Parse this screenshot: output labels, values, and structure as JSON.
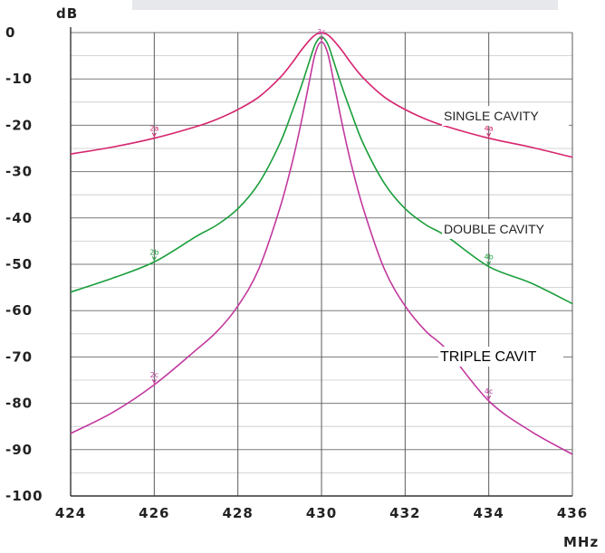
{
  "chart_data": {
    "type": "line",
    "title": "",
    "xlabel": "MHz",
    "ylabel": "dB",
    "xlim": [
      424,
      436
    ],
    "ylim": [
      -100,
      0
    ],
    "x_ticks": [
      "424",
      "426",
      "428",
      "430",
      "432",
      "434",
      "436"
    ],
    "y_ticks": [
      "0",
      "-10",
      "-20",
      "-30",
      "-40",
      "-50",
      "-60",
      "-70",
      "-80",
      "-90",
      "-100"
    ],
    "grid": true,
    "series": [
      {
        "name": "SINGLE CAVITY",
        "color": "#d6246e",
        "x": [
          424,
          425,
          426,
          427,
          427.5,
          428,
          428.5,
          429,
          429.3,
          429.5,
          429.7,
          429.85,
          430,
          430.15,
          430.3,
          430.5,
          430.7,
          431,
          431.5,
          432,
          432.5,
          433,
          434,
          435,
          436
        ],
        "y": [
          -26.2,
          -24.7,
          -22.8,
          -20.3,
          -18.7,
          -16.6,
          -13.9,
          -9.8,
          -6.5,
          -4.0,
          -1.8,
          -0.5,
          0,
          -0.5,
          -1.8,
          -4.0,
          -6.5,
          -9.8,
          -13.9,
          -16.6,
          -18.7,
          -20.3,
          -22.8,
          -24.7,
          -26.9
        ]
      },
      {
        "name": "DOUBLE CAVITY",
        "color": "#1a9e3a",
        "x": [
          424,
          425,
          426,
          427,
          427.5,
          428,
          428.5,
          429,
          429.3,
          429.5,
          429.7,
          429.85,
          430,
          430.15,
          430.3,
          430.5,
          430.7,
          431,
          431.5,
          432,
          432.5,
          433,
          434,
          435,
          436
        ],
        "y": [
          -56,
          -53,
          -49.5,
          -44,
          -41.5,
          -38,
          -32.5,
          -24,
          -17,
          -12,
          -6.5,
          -2.5,
          -1,
          -2.5,
          -6.5,
          -12,
          -17,
          -24,
          -32.5,
          -38,
          -41.5,
          -44,
          -50.5,
          -54,
          -58.5
        ]
      },
      {
        "name": "TRIPLE CAVIT",
        "color": "#c2389e",
        "x": [
          424,
          425,
          426,
          427,
          427.5,
          428,
          428.5,
          429,
          429.3,
          429.5,
          429.7,
          429.85,
          430,
          430.15,
          430.3,
          430.5,
          430.7,
          431,
          431.5,
          432,
          432.5,
          433,
          434,
          435,
          436
        ],
        "y": [
          -86.5,
          -82,
          -76,
          -68.5,
          -64.5,
          -59,
          -51,
          -38,
          -28,
          -20,
          -11,
          -4.5,
          -2,
          -4.5,
          -11,
          -20,
          -28,
          -38,
          -51,
          -59,
          -64.5,
          -68.5,
          -79.5,
          -86,
          -91
        ]
      }
    ],
    "markers": [
      {
        "label": "2a",
        "series": 0,
        "x": 426
      },
      {
        "label": "4a",
        "series": 0,
        "x": 434
      },
      {
        "label": "3c",
        "series": 2,
        "x": 430
      },
      {
        "label": "2b",
        "series": 1,
        "x": 426
      },
      {
        "label": "4b",
        "series": 1,
        "x": 434
      },
      {
        "label": "2c",
        "series": 2,
        "x": 426
      },
      {
        "label": "4c",
        "series": 2,
        "x": 434
      }
    ]
  }
}
